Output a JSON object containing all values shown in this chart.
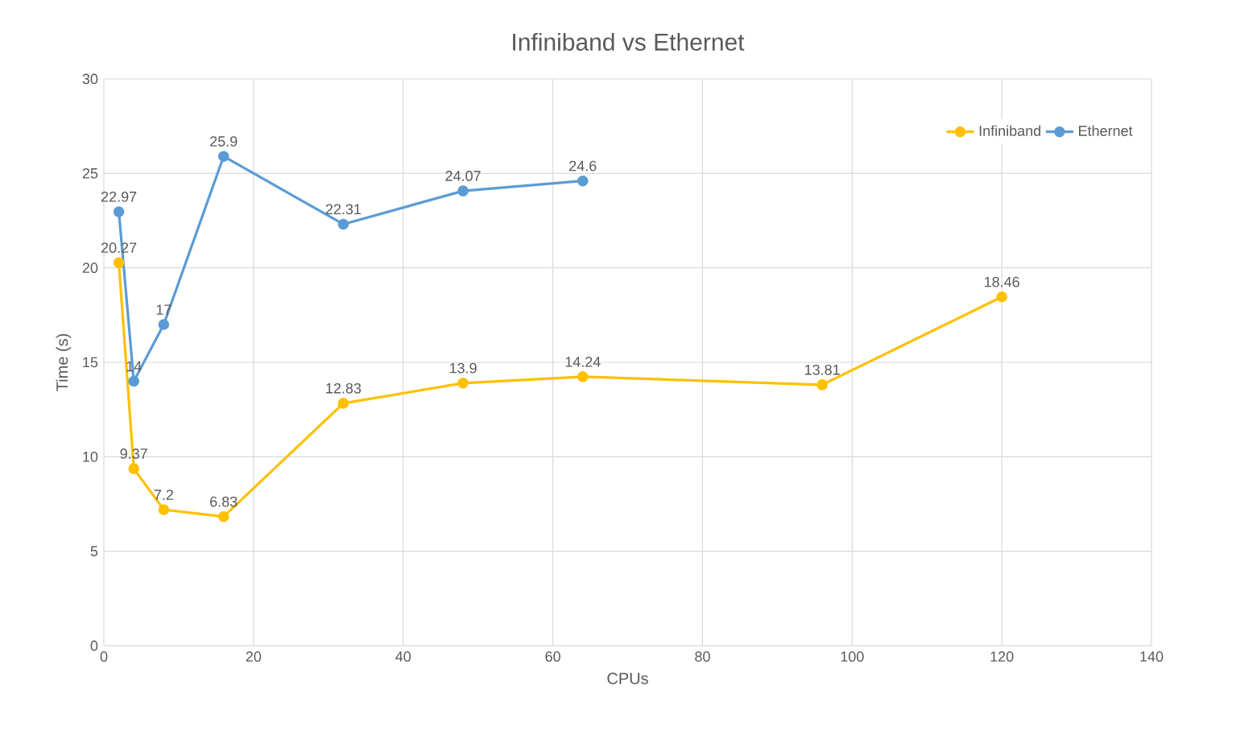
{
  "chart_data": {
    "type": "line",
    "title": "Infiniband vs Ethernet",
    "xlabel": "CPUs",
    "ylabel": "Time (s)",
    "series": [
      {
        "name": "Infiniband",
        "color": "#ffc000",
        "x": [
          2,
          4,
          8,
          16,
          32,
          48,
          64,
          96,
          120
        ],
        "values": [
          20.27,
          9.37,
          7.2,
          6.83,
          12.83,
          13.9,
          14.24,
          13.81,
          18.46
        ]
      },
      {
        "name": "Ethernet",
        "color": "#5b9bd5",
        "x": [
          2,
          4,
          8,
          16,
          32,
          48,
          64
        ],
        "values": [
          22.97,
          14,
          17,
          25.9,
          22.31,
          24.07,
          24.6
        ]
      }
    ],
    "xlim": [
      0,
      140
    ],
    "xticks": [
      0,
      20,
      40,
      60,
      80,
      100,
      120,
      140
    ],
    "ylim": [
      0,
      30
    ],
    "yticks": [
      0,
      5,
      10,
      15,
      20,
      25,
      30
    ],
    "grid": true,
    "legend": "top right",
    "marker": "circle",
    "line_style": "solid",
    "data_labels": true
  }
}
